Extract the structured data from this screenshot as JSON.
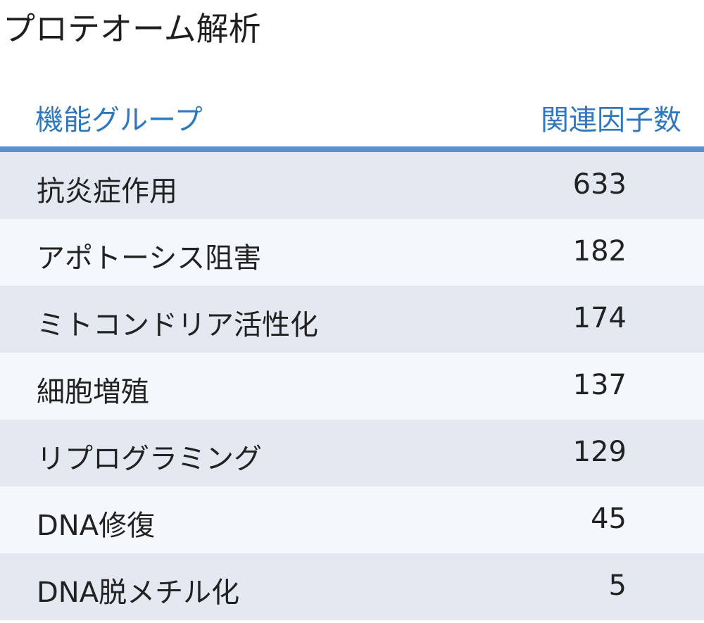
{
  "title": "プロテオーム解析",
  "table": {
    "columns": {
      "name": "機能グループ",
      "count": "関連因子数"
    },
    "rows": [
      {
        "name": "抗炎症作用",
        "count": "633"
      },
      {
        "name": "アポトーシス阻害",
        "count": "182"
      },
      {
        "name": "ミトコンドリア活性化",
        "count": "174"
      },
      {
        "name": "細胞増殖",
        "count": "137"
      },
      {
        "name": "リプログラミング",
        "count": "129"
      },
      {
        "name": "DNA修復",
        "count": "45"
      },
      {
        "name": "DNA脱メチル化",
        "count": "5"
      }
    ]
  },
  "colors": {
    "header_text": "#2f78be",
    "header_rule": "#5b8fcd",
    "row_shaded": "#e4e9f1",
    "row_plain": "#f4f7fb"
  }
}
